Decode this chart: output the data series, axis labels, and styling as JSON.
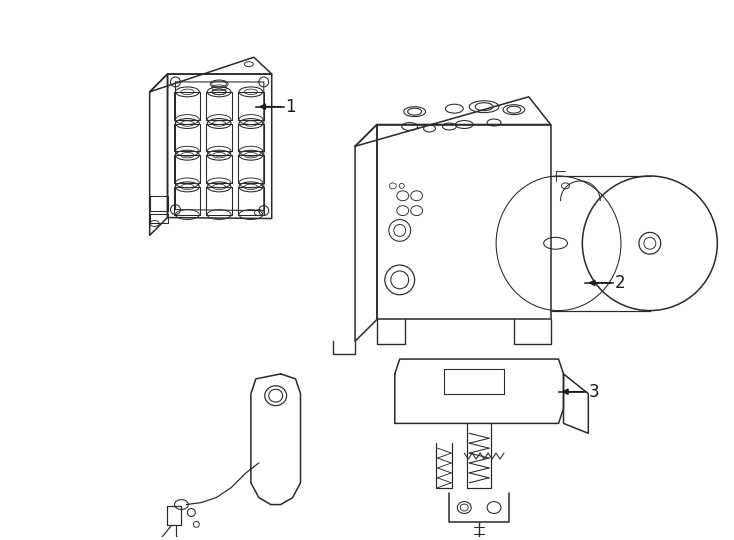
{
  "background_color": "#ffffff",
  "line_color": "#2a2a2a",
  "line_width": 1.1,
  "label_fontsize": 12,
  "label_color": "#1a1a1a"
}
